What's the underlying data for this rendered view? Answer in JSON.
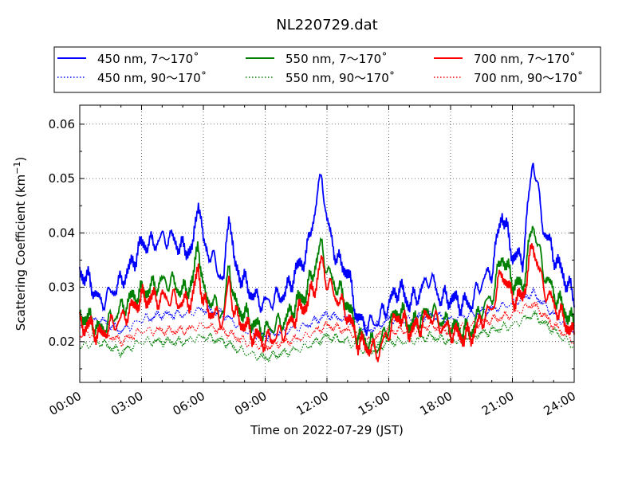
{
  "chart_data": {
    "type": "line",
    "title": "NL220729.dat",
    "xlabel": "Time on 2022-07-29 (JST)",
    "ylabel": "Scattering Coefficient (km",
    "ylabel_sup": "−1",
    "ylabel_close": ")",
    "xlim": [
      "00:00",
      "24:00"
    ],
    "ylim": [
      0.0125,
      0.0635
    ],
    "grid": true,
    "legend_position": "top",
    "x_ticks": [
      "00:00",
      "03:00",
      "06:00",
      "09:00",
      "12:00",
      "15:00",
      "18:00",
      "21:00",
      "24:00"
    ],
    "y_ticks": [
      "0.02",
      "0.03",
      "0.04",
      "0.05",
      "0.06"
    ],
    "series": [
      {
        "name": "450 nm, 7～170˚",
        "color": "#0000ff",
        "style": "solid",
        "x": [
          0,
          0.5,
          1,
          1.5,
          2,
          2.5,
          3,
          3.5,
          4,
          4.5,
          5,
          5.5,
          5.75,
          6,
          6.5,
          7,
          7.25,
          7.5,
          8,
          8.5,
          9,
          9.5,
          10,
          10.5,
          11,
          11.5,
          11.75,
          12,
          12.5,
          13,
          13.5,
          14,
          14.5,
          15,
          15.5,
          16,
          16.5,
          17,
          17.5,
          18,
          18.5,
          19,
          19.5,
          20,
          20.5,
          21,
          21.5,
          22,
          22.5,
          23,
          23.5,
          24
        ],
        "values": [
          0.033,
          0.031,
          0.027,
          0.029,
          0.031,
          0.034,
          0.038,
          0.038,
          0.039,
          0.039,
          0.037,
          0.037,
          0.047,
          0.038,
          0.035,
          0.031,
          0.045,
          0.034,
          0.031,
          0.028,
          0.027,
          0.028,
          0.029,
          0.033,
          0.036,
          0.046,
          0.051,
          0.042,
          0.035,
          0.033,
          0.024,
          0.023,
          0.024,
          0.027,
          0.03,
          0.027,
          0.029,
          0.032,
          0.028,
          0.028,
          0.027,
          0.027,
          0.031,
          0.033,
          0.044,
          0.036,
          0.035,
          0.054,
          0.041,
          0.036,
          0.032,
          0.028
        ]
      },
      {
        "name": "450 nm, 90～170˚",
        "color": "#0000ff",
        "style": "dotted",
        "x": [
          0,
          1,
          2,
          3,
          4,
          5,
          6,
          7,
          8,
          9,
          10,
          11,
          12,
          13,
          14,
          15,
          16,
          17,
          18,
          19,
          20,
          21,
          22,
          23,
          24
        ],
        "values": [
          0.023,
          0.024,
          0.022,
          0.024,
          0.025,
          0.025,
          0.026,
          0.025,
          0.022,
          0.021,
          0.022,
          0.023,
          0.025,
          0.024,
          0.022,
          0.024,
          0.024,
          0.025,
          0.024,
          0.025,
          0.026,
          0.027,
          0.029,
          0.025,
          0.022
        ]
      },
      {
        "name": "550 nm, 7～170˚",
        "color": "#008000",
        "style": "solid",
        "x": [
          0,
          0.5,
          1,
          1.5,
          2,
          2.5,
          3,
          3.5,
          4,
          4.5,
          5,
          5.5,
          5.75,
          6,
          6.5,
          7,
          7.25,
          7.5,
          8,
          8.5,
          9,
          9.5,
          10,
          10.5,
          11,
          11.5,
          11.75,
          12,
          12.5,
          13,
          13.5,
          14,
          14.5,
          15,
          15.5,
          16,
          16.5,
          17,
          17.5,
          18,
          18.5,
          19,
          19.5,
          20,
          20.5,
          21,
          21.5,
          22,
          22.5,
          23,
          23.5,
          24
        ],
        "values": [
          0.025,
          0.024,
          0.022,
          0.024,
          0.026,
          0.028,
          0.029,
          0.03,
          0.031,
          0.031,
          0.029,
          0.031,
          0.039,
          0.029,
          0.027,
          0.025,
          0.035,
          0.027,
          0.025,
          0.023,
          0.022,
          0.023,
          0.024,
          0.027,
          0.029,
          0.035,
          0.038,
          0.033,
          0.03,
          0.027,
          0.021,
          0.02,
          0.019,
          0.023,
          0.026,
          0.023,
          0.024,
          0.026,
          0.024,
          0.023,
          0.022,
          0.022,
          0.026,
          0.028,
          0.036,
          0.031,
          0.03,
          0.042,
          0.033,
          0.029,
          0.026,
          0.023
        ]
      },
      {
        "name": "550 nm, 90～170˚",
        "color": "#008000",
        "style": "dotted",
        "x": [
          0,
          1,
          2,
          3,
          4,
          5,
          6,
          7,
          8,
          9,
          10,
          11,
          12,
          13,
          14,
          15,
          16,
          17,
          18,
          19,
          20,
          21,
          22,
          23,
          24
        ],
        "values": [
          0.019,
          0.02,
          0.018,
          0.02,
          0.02,
          0.02,
          0.021,
          0.02,
          0.018,
          0.017,
          0.018,
          0.019,
          0.021,
          0.02,
          0.018,
          0.02,
          0.02,
          0.021,
          0.02,
          0.021,
          0.022,
          0.023,
          0.025,
          0.022,
          0.019
        ]
      },
      {
        "name": "700 nm, 7～170˚",
        "color": "#ff0000",
        "style": "solid",
        "x": [
          0,
          0.5,
          1,
          1.5,
          2,
          2.5,
          3,
          3.5,
          4,
          4.5,
          5,
          5.5,
          5.75,
          6,
          6.5,
          7,
          7.25,
          7.5,
          8,
          8.5,
          9,
          9.5,
          10,
          10.5,
          11,
          11.5,
          11.75,
          12,
          12.5,
          13,
          13.5,
          14,
          14.5,
          15,
          15.5,
          16,
          16.5,
          17,
          17.5,
          18,
          18.5,
          19,
          19.5,
          20,
          20.5,
          21,
          21.5,
          22,
          22.5,
          23,
          23.5,
          24
        ],
        "values": [
          0.023,
          0.023,
          0.021,
          0.023,
          0.024,
          0.026,
          0.028,
          0.028,
          0.028,
          0.028,
          0.027,
          0.028,
          0.034,
          0.027,
          0.025,
          0.024,
          0.032,
          0.025,
          0.023,
          0.021,
          0.02,
          0.021,
          0.022,
          0.025,
          0.027,
          0.031,
          0.035,
          0.031,
          0.028,
          0.025,
          0.02,
          0.019,
          0.018,
          0.022,
          0.025,
          0.022,
          0.023,
          0.025,
          0.023,
          0.022,
          0.021,
          0.021,
          0.024,
          0.026,
          0.033,
          0.028,
          0.028,
          0.038,
          0.03,
          0.027,
          0.024,
          0.021
        ]
      },
      {
        "name": "700 nm, 90～170˚",
        "color": "#ff0000",
        "style": "dotted",
        "x": [
          0,
          1,
          2,
          3,
          4,
          5,
          6,
          7,
          8,
          9,
          10,
          11,
          12,
          13,
          14,
          15,
          16,
          17,
          18,
          19,
          20,
          21,
          22,
          23,
          24
        ],
        "values": [
          0.021,
          0.022,
          0.02,
          0.022,
          0.022,
          0.022,
          0.023,
          0.022,
          0.02,
          0.019,
          0.02,
          0.021,
          0.023,
          0.022,
          0.02,
          0.022,
          0.022,
          0.023,
          0.022,
          0.023,
          0.024,
          0.025,
          0.027,
          0.023,
          0.02
        ]
      }
    ]
  }
}
